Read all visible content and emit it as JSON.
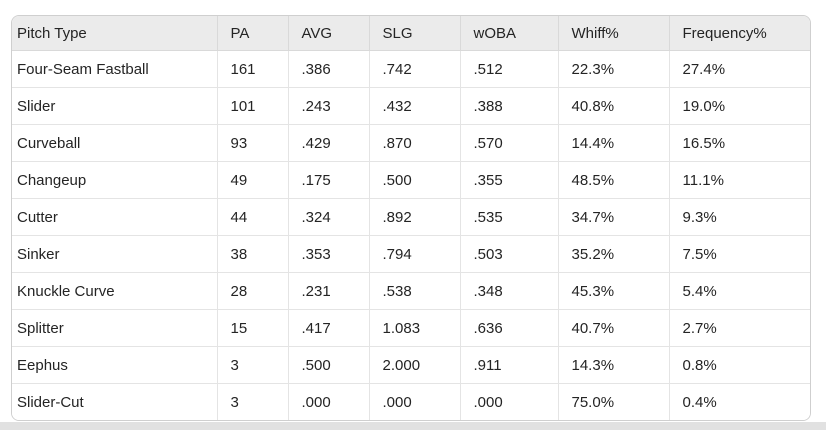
{
  "page": {
    "background": "#ffffff",
    "bottom_band_color": "#e1e1e1"
  },
  "table": {
    "columns": [
      {
        "label": "Pitch Type"
      },
      {
        "label": "PA"
      },
      {
        "label": "AVG"
      },
      {
        "label": "SLG"
      },
      {
        "label": "wOBA"
      },
      {
        "label": "Whiff%"
      },
      {
        "label": "Frequency%"
      }
    ],
    "rows": [
      {
        "pitch_type": "Four-Seam Fastball",
        "pa": "161",
        "avg": ".386",
        "slg": ".742",
        "woba": ".512",
        "whiff_pct": "22.3%",
        "frequency_pct": "27.4%"
      },
      {
        "pitch_type": "Slider",
        "pa": "101",
        "avg": ".243",
        "slg": ".432",
        "woba": ".388",
        "whiff_pct": "40.8%",
        "frequency_pct": "19.0%"
      },
      {
        "pitch_type": "Curveball",
        "pa": "93",
        "avg": ".429",
        "slg": ".870",
        "woba": ".570",
        "whiff_pct": "14.4%",
        "frequency_pct": "16.5%"
      },
      {
        "pitch_type": "Changeup",
        "pa": "49",
        "avg": ".175",
        "slg": ".500",
        "woba": ".355",
        "whiff_pct": "48.5%",
        "frequency_pct": "11.1%"
      },
      {
        "pitch_type": "Cutter",
        "pa": "44",
        "avg": ".324",
        "slg": ".892",
        "woba": ".535",
        "whiff_pct": "34.7%",
        "frequency_pct": "9.3%"
      },
      {
        "pitch_type": "Sinker",
        "pa": "38",
        "avg": ".353",
        "slg": ".794",
        "woba": ".503",
        "whiff_pct": "35.2%",
        "frequency_pct": "7.5%"
      },
      {
        "pitch_type": "Knuckle Curve",
        "pa": "28",
        "avg": ".231",
        "slg": ".538",
        "woba": ".348",
        "whiff_pct": "45.3%",
        "frequency_pct": "5.4%"
      },
      {
        "pitch_type": "Splitter",
        "pa": "15",
        "avg": ".417",
        "slg": "1.083",
        "woba": ".636",
        "whiff_pct": "40.7%",
        "frequency_pct": "2.7%"
      },
      {
        "pitch_type": "Eephus",
        "pa": "3",
        "avg": ".500",
        "slg": "2.000",
        "woba": ".911",
        "whiff_pct": "14.3%",
        "frequency_pct": "0.8%"
      },
      {
        "pitch_type": "Slider-Cut",
        "pa": "3",
        "avg": ".000",
        "slg": ".000",
        "woba": ".000",
        "whiff_pct": "75.0%",
        "frequency_pct": "0.4%"
      }
    ],
    "colors": {
      "header_background": "#ebebeb",
      "row_background": "#ffffff",
      "outer_border": "#cfcfcf",
      "inner_border": "#e4e4e4",
      "text": "#242424"
    }
  }
}
